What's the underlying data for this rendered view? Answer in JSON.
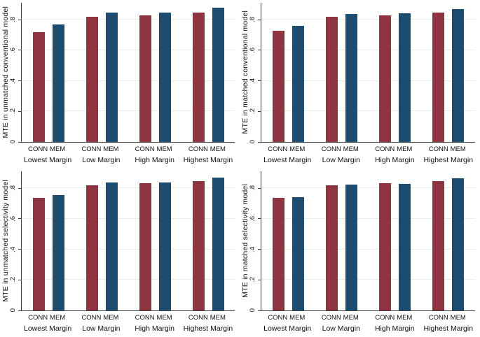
{
  "colors": {
    "conn": "#8e3541",
    "mem": "#1c4c70",
    "gridline": "#e4eeec",
    "axis": "#3d3d3d",
    "background": "#ffffff"
  },
  "chart_data": [
    {
      "type": "bar",
      "position": "top-left",
      "ylabel": "MTE in unmatched conventional model",
      "categories": [
        "Lowest Margin",
        "Low Margin",
        "High Margin",
        "Highest Margin"
      ],
      "series": [
        {
          "name": "CONN",
          "color": "#8e3541",
          "values": [
            0.72,
            0.82,
            0.83,
            0.845
          ]
        },
        {
          "name": "MEM",
          "color": "#1c4c70",
          "values": [
            0.77,
            0.845,
            0.845,
            0.88
          ]
        }
      ],
      "yticks": [
        0,
        0.2,
        0.4,
        0.6,
        0.8
      ],
      "ytick_labels": [
        "0",
        ".2",
        ".4",
        ".6",
        ".8"
      ],
      "ylim": [
        0,
        0.91
      ],
      "grid": true,
      "legend_position": "none"
    },
    {
      "type": "bar",
      "position": "top-right",
      "ylabel": "MTE in matched conventional model",
      "categories": [
        "Lowest Margin",
        "Low Margin",
        "High Margin",
        "Highest Margin"
      ],
      "series": [
        {
          "name": "CONN",
          "color": "#8e3541",
          "values": [
            0.725,
            0.82,
            0.83,
            0.845
          ]
        },
        {
          "name": "MEM",
          "color": "#1c4c70",
          "values": [
            0.76,
            0.835,
            0.84,
            0.87
          ]
        }
      ],
      "yticks": [
        0,
        0.2,
        0.4,
        0.6,
        0.8
      ],
      "ytick_labels": [
        "0",
        ".2",
        ".4",
        ".6",
        ".8"
      ],
      "ylim": [
        0,
        0.91
      ],
      "grid": true,
      "legend_position": "none"
    },
    {
      "type": "bar",
      "position": "bottom-left",
      "ylabel": "MTE in unmatched selectivity model",
      "categories": [
        "Lowest Margin",
        "Low Margin",
        "High Margin",
        "Highest Margin"
      ],
      "series": [
        {
          "name": "CONN",
          "color": "#8e3541",
          "values": [
            0.735,
            0.82,
            0.832,
            0.845
          ]
        },
        {
          "name": "MEM",
          "color": "#1c4c70",
          "values": [
            0.755,
            0.835,
            0.836,
            0.87
          ]
        }
      ],
      "yticks": [
        0,
        0.2,
        0.4,
        0.6,
        0.8
      ],
      "ytick_labels": [
        "0",
        ".2",
        ".4",
        ".6",
        ".8"
      ],
      "ylim": [
        0,
        0.91
      ],
      "grid": true,
      "legend_position": "none"
    },
    {
      "type": "bar",
      "position": "bottom-right",
      "ylabel": "MTE in matched selectivity model",
      "categories": [
        "Lowest Margin",
        "Low Margin",
        "High Margin",
        "Highest Margin"
      ],
      "series": [
        {
          "name": "CONN",
          "color": "#8e3541",
          "values": [
            0.735,
            0.82,
            0.834,
            0.844
          ]
        },
        {
          "name": "MEM",
          "color": "#1c4c70",
          "values": [
            0.74,
            0.823,
            0.827,
            0.864
          ]
        }
      ],
      "yticks": [
        0,
        0.2,
        0.4,
        0.6,
        0.8
      ],
      "ytick_labels": [
        "0",
        ".2",
        ".4",
        ".6",
        ".8"
      ],
      "ylim": [
        0,
        0.91
      ],
      "grid": true,
      "legend_position": "none"
    }
  ]
}
